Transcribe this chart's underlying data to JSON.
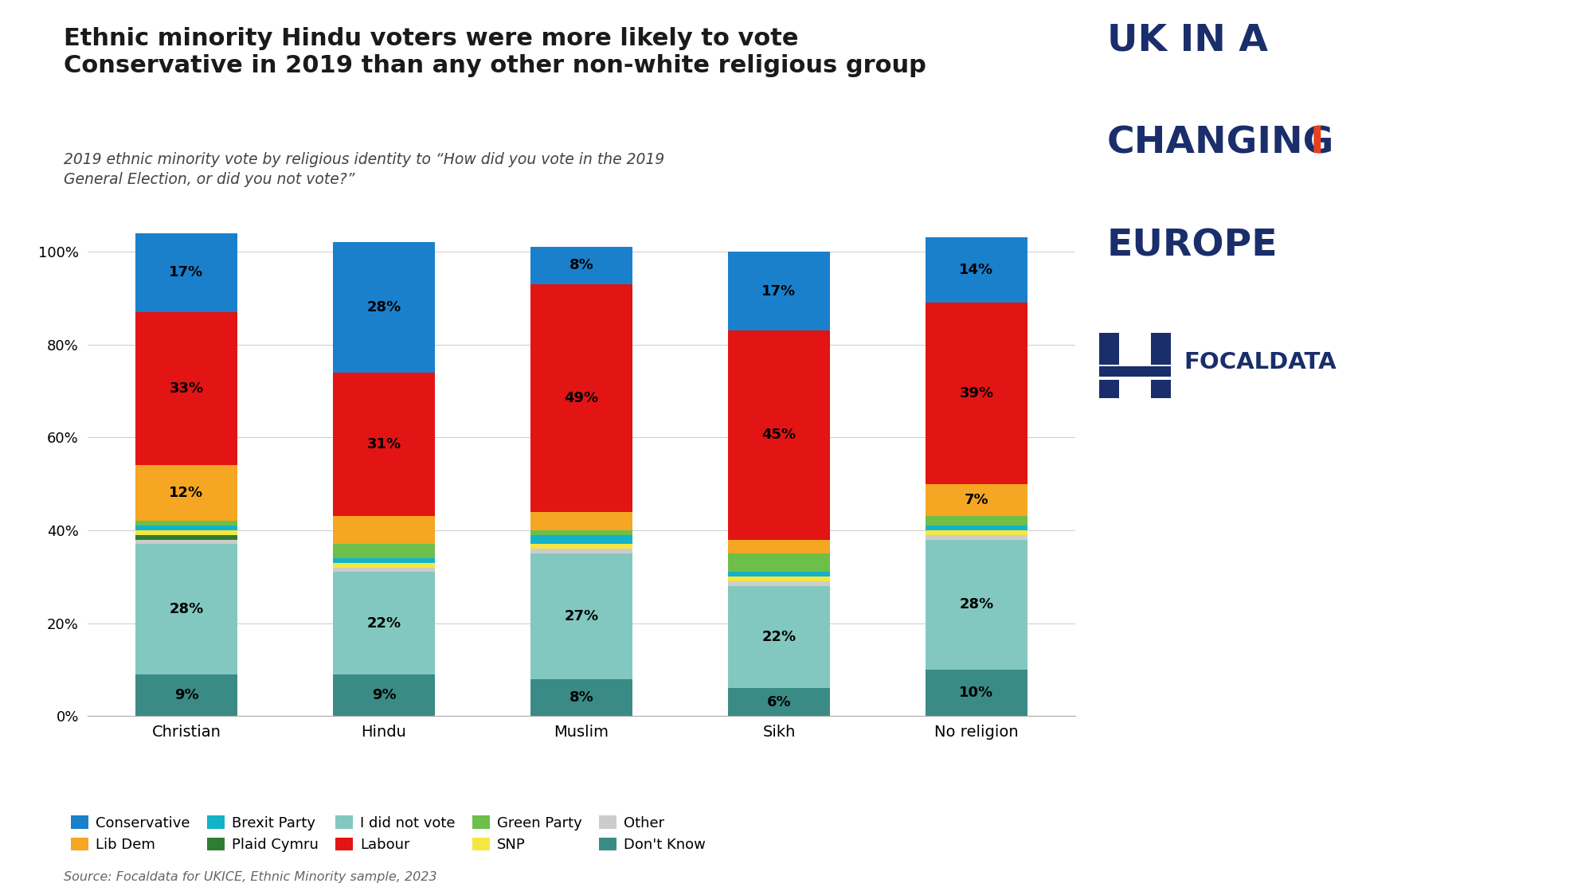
{
  "categories": [
    "Christian",
    "Hindu",
    "Muslim",
    "Sikh",
    "No religion"
  ],
  "series": {
    "Don't Know": [
      9,
      9,
      8,
      6,
      10
    ],
    "I did not vote": [
      28,
      22,
      27,
      22,
      28
    ],
    "Other": [
      1,
      1,
      1,
      1,
      1
    ],
    "Plaid Cymru": [
      1,
      0,
      0,
      0,
      0
    ],
    "SNP": [
      1,
      1,
      1,
      1,
      1
    ],
    "Brexit Party": [
      1,
      1,
      2,
      1,
      1
    ],
    "Green Party": [
      1,
      3,
      1,
      4,
      2
    ],
    "Lib Dem": [
      12,
      6,
      4,
      3,
      7
    ],
    "Labour": [
      33,
      31,
      49,
      45,
      39
    ],
    "Conservative": [
      17,
      28,
      8,
      17,
      14
    ]
  },
  "colors": {
    "Conservative": "#1B80CC",
    "Labour": "#E31414",
    "Lib Dem": "#F5A623",
    "Green Party": "#6DBF4A",
    "Brexit Party": "#12B3C9",
    "SNP": "#F5E642",
    "Plaid Cymru": "#2E7D32",
    "Other": "#CCCCCC",
    "I did not vote": "#82C8C0",
    "Don't Know": "#3A8B85"
  },
  "label_series": [
    "Don't Know",
    "I did not vote",
    "Lib Dem",
    "Labour",
    "Conservative"
  ],
  "label_show": {
    "Don't Know": [
      true,
      true,
      true,
      true,
      true
    ],
    "I did not vote": [
      true,
      true,
      true,
      true,
      true
    ],
    "Lib Dem": [
      true,
      false,
      false,
      false,
      true
    ],
    "Labour": [
      true,
      true,
      true,
      true,
      true
    ],
    "Conservative": [
      true,
      true,
      true,
      true,
      true
    ]
  },
  "title_line1": "Ethnic minority Hindu voters were more likely to vote",
  "title_line2": "Conservative in 2019 than any other non-white religious group",
  "subtitle": "2019 ethnic minority vote by religious identity to “How did you vote in the 2019\nGeneral Election, or did you not vote?”",
  "source": "Source: Focaldata for UKICE, Ethnic Minority sample, 2023",
  "background_color": "#FFFFFF",
  "bar_width": 0.52,
  "legend_order": [
    "Conservative",
    "Lib Dem",
    "Brexit Party",
    "Plaid Cymru",
    "I did not vote",
    "Labour",
    "Green Party",
    "SNP",
    "Other",
    "Don't Know"
  ],
  "title_color": "#1A1A1A",
  "subtitle_color": "#444444",
  "source_color": "#666666",
  "logo_blue": "#1A2E6B",
  "logo_orange": "#E8401C"
}
